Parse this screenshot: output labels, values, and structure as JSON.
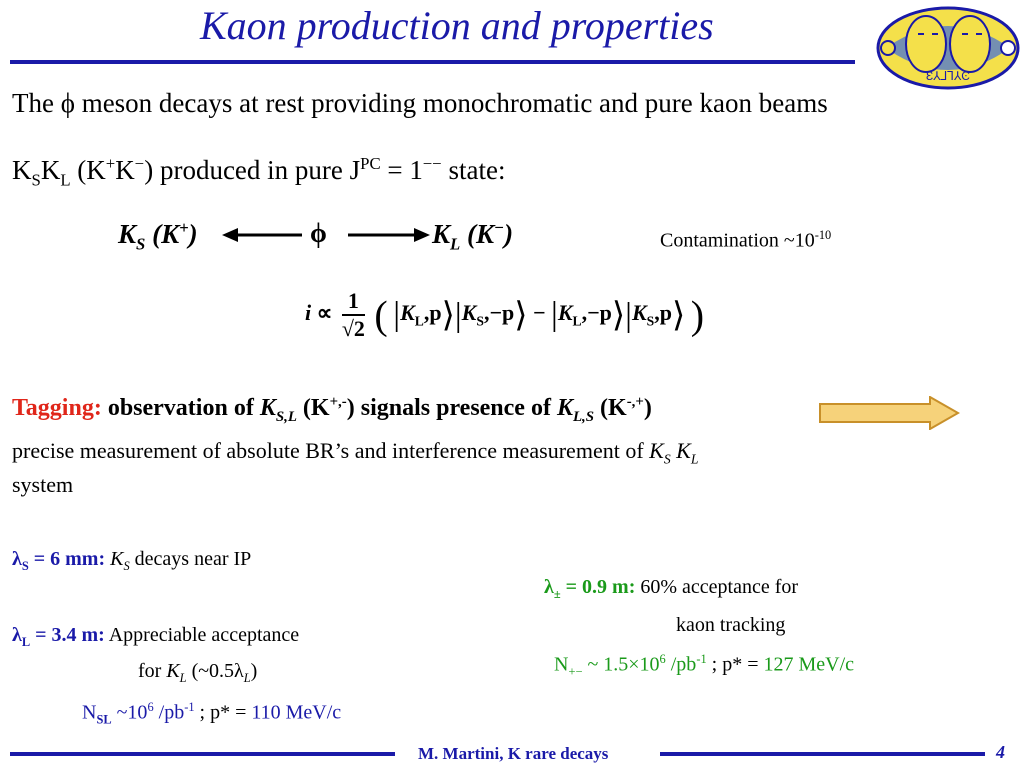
{
  "title": "Kaon production and properties",
  "line1": "The ϕ meson decays at rest providing monochromatic and pure kaon beams",
  "line2": {
    "ks": "K",
    "ks_sub": "S",
    "kl": "K",
    "kl_sub": "L",
    "paren": "(K",
    "kp_sup": "+",
    "km": "K",
    "km_sup": "−",
    "paren_close": ")",
    "text": " produced in pure J",
    "jpc_sup": "PC",
    "eq": " = 1",
    "neg_sup": "−−",
    "state": " state:"
  },
  "decay": {
    "left": "K",
    "left_sub": "S",
    "left_paren": " (K",
    "left_sup": "+",
    "left_close": ")",
    "phi": "ϕ",
    "right": "K",
    "right_sub": "L",
    "right_paren": " (K",
    "right_sup": "−",
    "right_close": ")"
  },
  "contamination": {
    "text": "Contamination ~10",
    "sup": "-10"
  },
  "formula": {
    "i": "i",
    "prop": "∝",
    "num": "1",
    "den": "√2",
    "kl": "K",
    "kl_sub": "L",
    "p": ",p",
    "ks": "K",
    "ks_sub": "S",
    "mp": ",−p",
    "minus": "−"
  },
  "tagging": {
    "label": "Tagging:",
    "text1": " observation of ",
    "k1": "K",
    "k1_sub": "S,L",
    "k1_paren": " (K",
    "k1_sup": "+,-",
    "k1_close": ")",
    "text2": " signals presence of ",
    "k2": "K",
    "k2_sub": "L,S",
    "k2_paren": " (K",
    "k2_sup": "-,+",
    "k2_close": ")"
  },
  "precise": {
    "line1": "precise measurement of absolute BR’s and interference measurement  of ",
    "ks": "K",
    "ks_sub": "S",
    "kl": "K",
    "kl_sub": "L",
    "line2": "system"
  },
  "lambda_s": {
    "lam": "λ",
    "sub": "S",
    "val": " = 6 mm:",
    "k": " K",
    "k_sub": "S",
    "text": " decays near IP"
  },
  "lambda_pm": {
    "lam": "λ",
    "sub": "±",
    "val": " = 0.9 m:",
    "text": " 60%  acceptance for",
    "text2": "kaon tracking"
  },
  "n_pm": {
    "n": "N",
    "sub": "+−",
    "val": " ~ 1.5×10",
    "exp": "6",
    "unit": " /pb",
    "unit_exp": "-1",
    "sep": " ;  p* = ",
    "p": "127 MeV/c"
  },
  "lambda_l": {
    "lam": "λ",
    "sub": "L",
    "val": " = 3.4 m:",
    "text": " Appreciable acceptance",
    "for": "for ",
    "k": "K",
    "k_sub": "L",
    "approx": "  (~0.5λ",
    "approx_sub": "L",
    "approx_close": ")"
  },
  "n_sl": {
    "n": "N",
    "sub": "SL",
    "val": " ~10",
    "exp": "6",
    "unit": " /pb",
    "unit_exp": "-1",
    "sep": " ;  p* = ",
    "p": "110 MeV/c"
  },
  "footer": {
    "text": "M. Martini, K rare decays",
    "page": "4"
  },
  "logo_text": "Ɛ⅄⅃⅂⅄Ͼ",
  "colors": {
    "blue": "#1a1aa8",
    "red": "#e0261a",
    "green": "#1a9a1a",
    "arrow_fill": "#f6d27a",
    "arrow_stroke": "#c8902a"
  }
}
